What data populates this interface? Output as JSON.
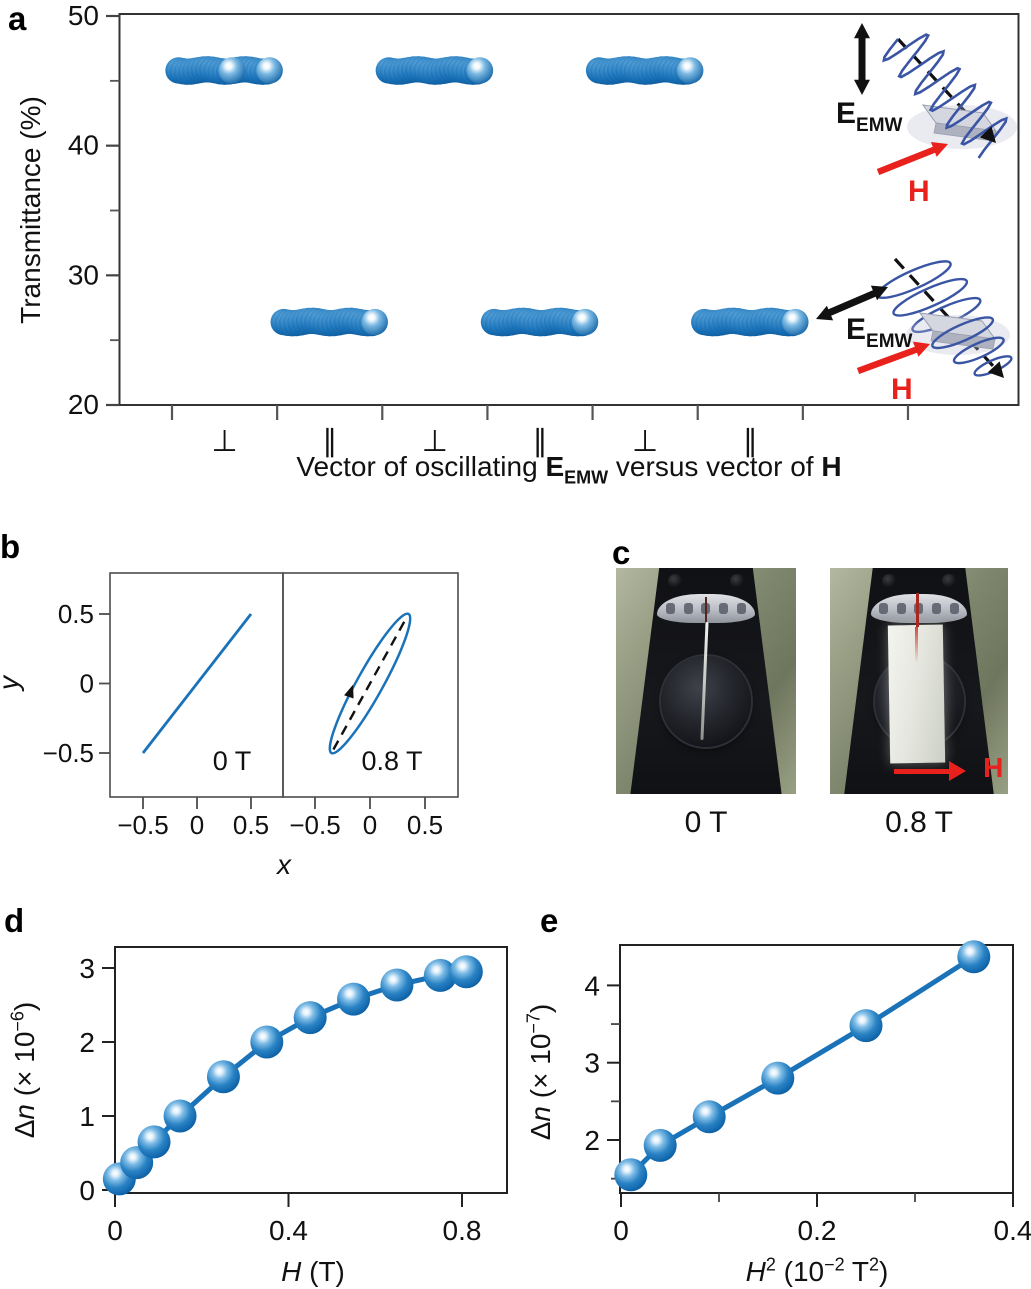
{
  "figure": {
    "panel_labels": [
      "a",
      "b",
      "c",
      "d",
      "e"
    ]
  },
  "colors": {
    "marker_blue": "#1a72b8",
    "marker_dark": "#0b5697",
    "line_blue": "#1a72b8",
    "wave_navy": "#3b55a5",
    "red": "#e8211d",
    "axis_dark": "#222222",
    "axis_gray": "#4d4d4d",
    "text": "#111111"
  },
  "chart_data": [
    {
      "id": "a",
      "type": "scatter",
      "title": "Microwave transmittance for E_EMW perpendicular versus parallel to H",
      "ylabel": "Transmittance (%)",
      "ylim": [
        20,
        50
      ],
      "yticks": [
        20,
        30,
        40,
        50
      ],
      "ytick_labels": [
        "20",
        "30",
        "40",
        "50"
      ],
      "yticks_minor": [
        25,
        35,
        45
      ],
      "xlabel": "Vector of oscillating E_EMW versus vector of H",
      "xtick_groups": [
        {
          "symbol": "⊥",
          "transmittance": 45.8
        },
        {
          "symbol": "∥",
          "transmittance": 26.4
        },
        {
          "symbol": "⊥",
          "transmittance": 45.8
        },
        {
          "symbol": "∥",
          "transmittance": 26.4
        },
        {
          "symbol": "⊥",
          "transmittance": 45.8
        },
        {
          "symbol": "∥",
          "transmittance": 26.4
        }
      ]
    },
    {
      "id": "b",
      "type": "line",
      "title": "Polarization traces",
      "xlabel": "x",
      "ylabel": "y",
      "xticks": [
        -0.5,
        0,
        0.5
      ],
      "xtick_labels": [
        "−0.5",
        "0",
        "0.5"
      ],
      "yticks": [
        0.5,
        0,
        -0.5
      ],
      "ytick_labels": [
        "0.5",
        "0",
        "−0.5"
      ],
      "xlim": [
        -0.8,
        0.8
      ],
      "ylim": [
        -0.82,
        0.8
      ],
      "subpanels": [
        {
          "label": "0 T",
          "trace": "line",
          "line_from": [
            -0.5,
            -0.5
          ],
          "line_to": [
            0.5,
            0.5
          ]
        },
        {
          "label": "0.8 T",
          "trace": "ellipse",
          "major_from": [
            -0.35,
            -0.5
          ],
          "major_to": [
            0.35,
            0.5
          ],
          "semi_minor": 0.12,
          "direction": "counterclockwise"
        }
      ]
    },
    {
      "id": "d",
      "type": "scatter-line",
      "xlabel": "H (T)",
      "ylabel": "Δn (× 10−6)",
      "x": [
        0.01,
        0.05,
        0.09,
        0.15,
        0.25,
        0.35,
        0.45,
        0.55,
        0.65,
        0.75,
        0.81
      ],
      "y": [
        0.15,
        0.37,
        0.65,
        1.0,
        1.53,
        2.0,
        2.33,
        2.58,
        2.77,
        2.9,
        2.95
      ],
      "xticks": [
        0,
        0.4,
        0.8
      ],
      "xtick_labels": [
        "0",
        "0.4",
        "0.8"
      ],
      "yticks": [
        0,
        1,
        2,
        3
      ],
      "ytick_labels": [
        "0",
        "1",
        "2",
        "3"
      ],
      "xlim": [
        0,
        0.9
      ],
      "ylim": [
        0,
        3.28
      ]
    },
    {
      "id": "e",
      "type": "scatter-line",
      "xlabel": "H2 (10−2 T2)",
      "ylabel": "Δn (× 10−7)",
      "x": [
        0.01,
        0.04,
        0.09,
        0.16,
        0.25,
        0.36
      ],
      "y": [
        1.55,
        1.93,
        2.3,
        2.8,
        3.48,
        4.37
      ],
      "xticks": [
        0,
        0.2,
        0.4
      ],
      "xtick_labels": [
        "0",
        "0.2",
        "0.4"
      ],
      "xticks_minor": [
        0.1,
        0.3
      ],
      "yticks": [
        2,
        3,
        4
      ],
      "ytick_labels": [
        "2",
        "3",
        "4"
      ],
      "yticks_minor": [
        1.5,
        2.5,
        3.5
      ],
      "xlim": [
        0,
        0.4
      ],
      "ylim": [
        1.31,
        4.52
      ]
    }
  ],
  "label_parts": {
    "a_xlabel": [
      {
        "t": "Vector of oscillating "
      },
      {
        "t": "E",
        "b": 1
      },
      {
        "t": "EMW",
        "b": 1,
        "sub": 1
      },
      {
        "t": " versus vector of "
      },
      {
        "t": "H",
        "b": 1
      }
    ],
    "b_xlabel": [
      {
        "t": "x",
        "i": 1
      }
    ],
    "b_ylabel": [
      {
        "t": "y",
        "i": 1
      }
    ],
    "d_xlabel": [
      {
        "t": "H",
        "i": 1
      },
      {
        "t": " (T)"
      }
    ],
    "d_ylabel": [
      {
        "t": "Δ"
      },
      {
        "t": "n",
        "i": 1
      },
      {
        "t": " (× 10"
      },
      {
        "t": "−6",
        "sup": 1
      },
      {
        "t": ")"
      }
    ],
    "e_xlabel": [
      {
        "t": "H",
        "i": 1
      },
      {
        "t": "2",
        "sup": 1
      },
      {
        "t": " (10"
      },
      {
        "t": "−2",
        "sup": 1
      },
      {
        "t": " T"
      },
      {
        "t": "2",
        "sup": 1
      },
      {
        "t": ")"
      }
    ],
    "e_ylabel": [
      {
        "t": "Δ"
      },
      {
        "t": "n",
        "i": 1
      },
      {
        "t": " (× 10"
      },
      {
        "t": "−7",
        "sup": 1
      },
      {
        "t": ")"
      }
    ]
  },
  "insets": {
    "top": {
      "e": "E",
      "e_sub": "EMW",
      "h": "H"
    },
    "bottom": {
      "e": "E",
      "e_sub": "EMW",
      "h": "H"
    }
  },
  "photos": {
    "captions": [
      "0 T",
      "0.8 T"
    ],
    "h_arrow_label": "H"
  }
}
